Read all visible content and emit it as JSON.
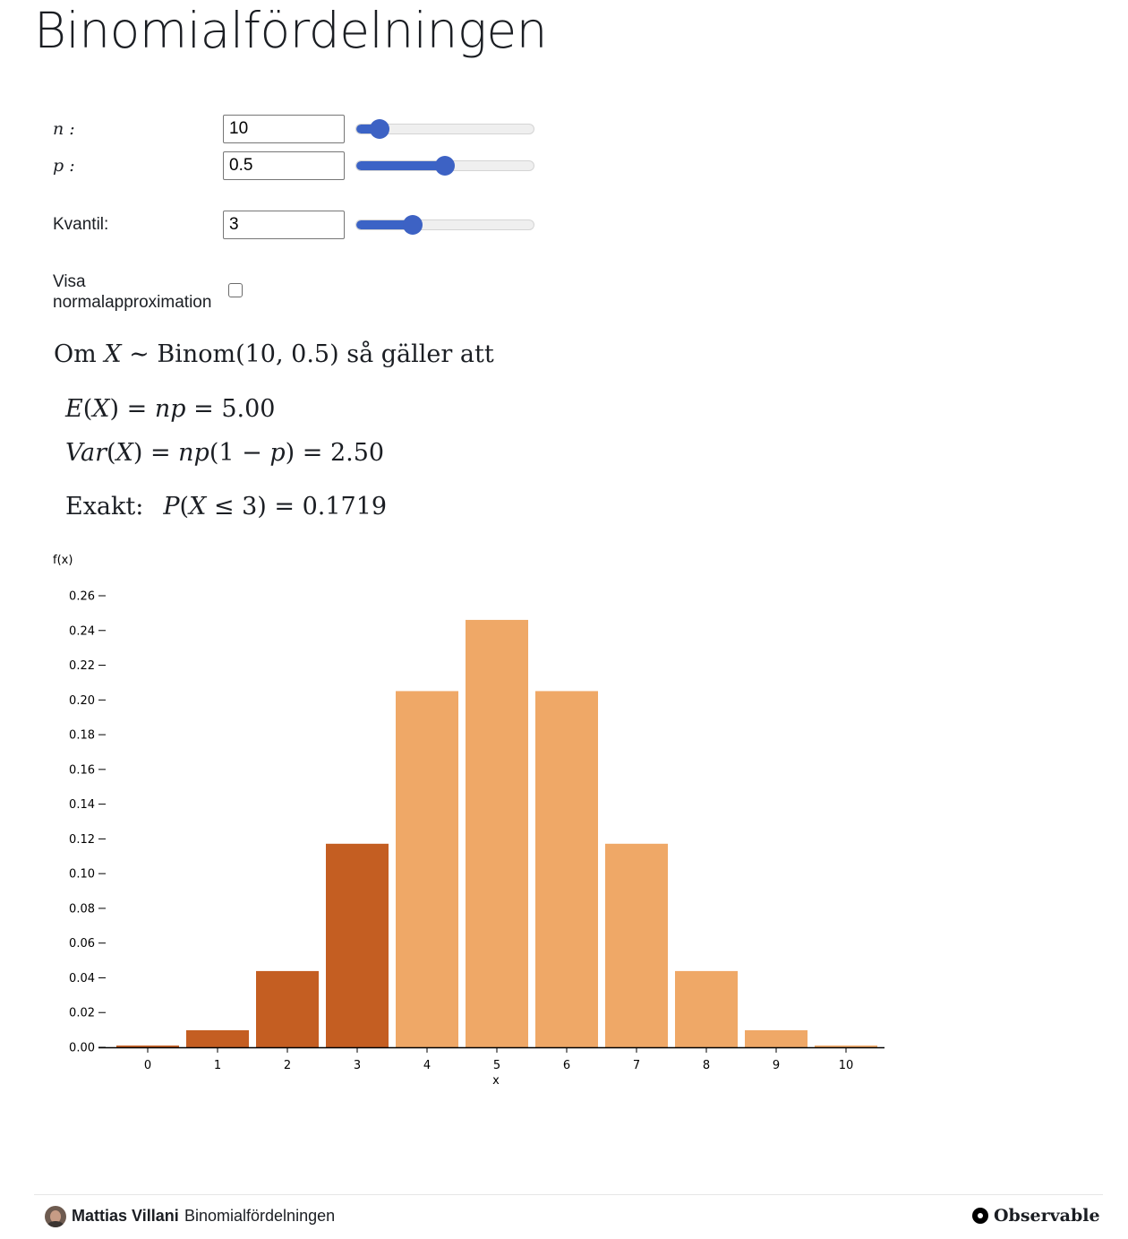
{
  "page": {
    "title": "Binomialfördelningen"
  },
  "controls": {
    "n": {
      "label": "n :",
      "value": "10",
      "min": 1,
      "max": 100,
      "current": 10
    },
    "p": {
      "label": "p :",
      "value": "0.5",
      "min": 0,
      "max": 1,
      "current": 0.5
    },
    "kvantil": {
      "label": "Kvantil:",
      "value": "3",
      "min": 0,
      "max": 10,
      "current": 3
    },
    "normal": {
      "label_line1": "Visa",
      "label_line2": "normalapproximation",
      "checked": false
    }
  },
  "math": {
    "intro": {
      "om": "Om",
      "X": "X",
      "sim": " ∼ ",
      "binom": "Binom(10, 0.5)",
      "rest": " så gäller att"
    },
    "ex": {
      "E": "E",
      "open": "(",
      "X": "X",
      "close": ")",
      "eq1": " = ",
      "np": "np",
      "eq2": " = ",
      "val": "5.00"
    },
    "var": {
      "V": "Var",
      "open": "(",
      "X": "X",
      "close": ")",
      "eq1": " = ",
      "np": "np",
      "paren": "(1 − ",
      "p": "p",
      "close2": ")",
      "eq2": " = ",
      "val": "2.50"
    },
    "exakt": {
      "label": "Exakt:",
      "P": "P",
      "open": "(",
      "X": "X",
      "le": " ≤ 3)",
      "eq": " = ",
      "val": "0.1719"
    }
  },
  "chart_data": {
    "type": "bar",
    "xlabel": "x",
    "ylabel": "f(x)",
    "categories": [
      "0",
      "1",
      "2",
      "3",
      "4",
      "5",
      "6",
      "7",
      "8",
      "9",
      "10"
    ],
    "values": [
      0.001,
      0.0098,
      0.0439,
      0.1172,
      0.2051,
      0.2461,
      0.2051,
      0.1172,
      0.0439,
      0.0098,
      0.001
    ],
    "highlight_upto": 3,
    "colors": {
      "highlight": "#c45e22",
      "normal": "#efa867"
    },
    "ylim": [
      0,
      0.26
    ],
    "yticks": [
      "0.00",
      "0.02",
      "0.04",
      "0.06",
      "0.08",
      "0.10",
      "0.12",
      "0.14",
      "0.16",
      "0.18",
      "0.20",
      "0.22",
      "0.24",
      "0.26"
    ],
    "grid": false
  },
  "footer": {
    "author": "Mattias Villani",
    "title": "Binomialfördelningen",
    "brand": "Observable"
  }
}
